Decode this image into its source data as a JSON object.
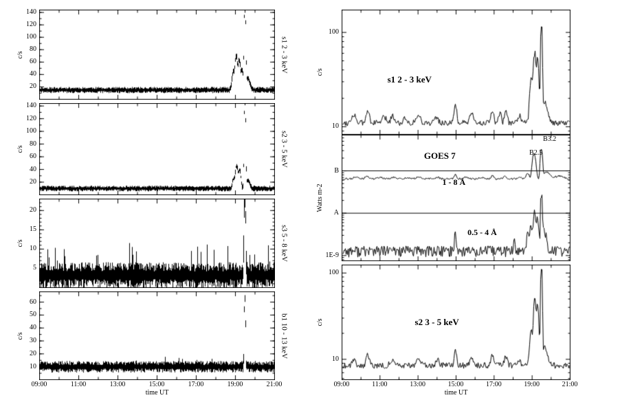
{
  "colors": {
    "trace": "#000000",
    "background": "#ffffff"
  },
  "chart_data": {
    "type": "line",
    "description": "Solar X-ray count-rate time profiles (detectors s1, s2, s3, b1) with GOES 7 X-ray flux comparison, 09:00-21:00 UT",
    "x_axis": {
      "label": "time UT",
      "start_hour": 9,
      "end_hour": 21,
      "ticks": [
        {
          "hour": 9,
          "label": "09:00"
        },
        {
          "hour": 11,
          "label": "11:00"
        },
        {
          "hour": 13,
          "label": "13:00"
        },
        {
          "hour": 15,
          "label": "15:00"
        },
        {
          "hour": 17,
          "label": "17:00"
        },
        {
          "hour": 19,
          "label": "19:00"
        },
        {
          "hour": 21,
          "label": "21:00"
        }
      ]
    },
    "figures": [
      {
        "id": "left-stack",
        "panels": [
          {
            "name": "s1-linear",
            "scale": "linear",
            "ylim": [
              0,
              144
            ],
            "yminor": 10,
            "ylabel": "c/s",
            "right_label": "s1  2 - 3 keV",
            "yticks": [
              {
                "v": 20,
                "label": "20"
              },
              {
                "v": 40,
                "label": "40"
              },
              {
                "v": 60,
                "label": "60"
              },
              {
                "v": 80,
                "label": "80"
              },
              {
                "v": 100,
                "label": "100"
              },
              {
                "v": 120,
                "label": "120"
              },
              {
                "v": 140,
                "label": "140"
              }
            ],
            "series": [
              {
                "mode": "band",
                "baseline": 15,
                "noise": 5,
                "seed": 11,
                "peaks": [
                  {
                    "t": 18.88,
                    "h": 28,
                    "w": 0.06
                  },
                  {
                    "t": 19.03,
                    "h": 52,
                    "w": 0.055
                  },
                  {
                    "t": 19.18,
                    "h": 46,
                    "w": 0.05
                  },
                  {
                    "t": 19.32,
                    "h": 30,
                    "w": 0.05
                  },
                  {
                    "t": 19.47,
                    "h": 122,
                    "w": 0.035
                  },
                  {
                    "t": 19.62,
                    "h": 18,
                    "w": 0.1
                  }
                ]
              }
            ]
          },
          {
            "name": "s2-linear",
            "scale": "linear",
            "ylim": [
              0,
              144
            ],
            "yminor": 10,
            "ylabel": "c/s",
            "right_label": "s2  3 - 5 keV",
            "yticks": [
              {
                "v": 20,
                "label": "20"
              },
              {
                "v": 40,
                "label": "40"
              },
              {
                "v": 60,
                "label": "60"
              },
              {
                "v": 80,
                "label": "80"
              },
              {
                "v": 100,
                "label": "100"
              },
              {
                "v": 120,
                "label": "120"
              },
              {
                "v": 140,
                "label": "140"
              }
            ],
            "series": [
              {
                "mode": "band",
                "baseline": 10,
                "noise": 4.5,
                "seed": 22,
                "peaks": [
                  {
                    "t": 18.9,
                    "h": 14,
                    "w": 0.06
                  },
                  {
                    "t": 19.05,
                    "h": 34,
                    "w": 0.055
                  },
                  {
                    "t": 19.2,
                    "h": 28,
                    "w": 0.05
                  },
                  {
                    "t": 19.47,
                    "h": 128,
                    "w": 0.03
                  },
                  {
                    "t": 19.6,
                    "h": 12,
                    "w": 0.1
                  }
                ]
              }
            ]
          },
          {
            "name": "s3-linear",
            "scale": "linear",
            "ylim": [
              0,
              23
            ],
            "yminor": 1,
            "ylabel": "c/s",
            "right_label": "s3  5 - 8 keV",
            "yticks": [
              {
                "v": 5,
                "label": "5"
              },
              {
                "v": 10,
                "label": "10"
              },
              {
                "v": 15,
                "label": "15"
              },
              {
                "v": 20,
                "label": "20"
              }
            ],
            "series": [
              {
                "mode": "band",
                "baseline": 3.2,
                "noise": 3.4,
                "seed": 33,
                "spike_prob": 0.08,
                "spike_amp": 6,
                "peaks": [
                  {
                    "t": 19.47,
                    "h": 19,
                    "w": 0.03
                  }
                ]
              }
            ]
          },
          {
            "name": "b1-linear",
            "scale": "linear",
            "ylim": [
              0,
              68
            ],
            "yminor": 5,
            "ylabel": "c/s",
            "right_label": "b1  10 - 13 keV",
            "yticks": [
              {
                "v": 10,
                "label": "10"
              },
              {
                "v": 20,
                "label": "20"
              },
              {
                "v": 30,
                "label": "30"
              },
              {
                "v": 40,
                "label": "40"
              },
              {
                "v": 50,
                "label": "50"
              },
              {
                "v": 60,
                "label": "60"
              }
            ],
            "series": [
              {
                "mode": "band",
                "baseline": 10,
                "noise": 4.5,
                "seed": 44,
                "spike_prob": 0.05,
                "spike_amp": 5,
                "peaks": [
                  {
                    "t": 19.47,
                    "h": 54,
                    "w": 0.022
                  }
                ]
              }
            ]
          }
        ]
      },
      {
        "id": "right-stack",
        "panels": [
          {
            "name": "s1-log",
            "scale": "log",
            "ylim": [
              8.3,
              173
            ],
            "ylabel": "c/s",
            "yticks": [
              {
                "v": 10,
                "label": "10"
              },
              {
                "v": 100,
                "label": "100"
              }
            ],
            "annotations": [
              {
                "text": "s1  2 - 3 keV",
                "fx": 0.2,
                "fy": 0.52,
                "size": 13,
                "bold": true
              }
            ],
            "series": [
              {
                "mode": "line",
                "baseline": 11,
                "noise_frac": 0.07,
                "seed": 55,
                "peaks": [
                  {
                    "t": 9.6,
                    "h": 2.5,
                    "w": 0.09
                  },
                  {
                    "t": 10.35,
                    "h": 3.5,
                    "w": 0.07
                  },
                  {
                    "t": 11.2,
                    "h": 1.5,
                    "w": 0.1
                  },
                  {
                    "t": 11.65,
                    "h": 2,
                    "w": 0.08
                  },
                  {
                    "t": 12.3,
                    "h": 1.2,
                    "w": 0.1
                  },
                  {
                    "t": 13,
                    "h": 2,
                    "w": 0.1
                  },
                  {
                    "t": 13.95,
                    "h": 1.5,
                    "w": 0.08
                  },
                  {
                    "t": 14.95,
                    "h": 6,
                    "w": 0.05
                  },
                  {
                    "t": 15.8,
                    "h": 2.5,
                    "w": 0.07
                  },
                  {
                    "t": 16.9,
                    "h": 4,
                    "w": 0.05
                  },
                  {
                    "t": 17.3,
                    "h": 2.5,
                    "w": 0.06
                  },
                  {
                    "t": 17.6,
                    "h": 3,
                    "w": 0.06
                  },
                  {
                    "t": 18.3,
                    "h": 2,
                    "w": 0.07
                  },
                  {
                    "t": 18.95,
                    "h": 22,
                    "w": 0.07
                  },
                  {
                    "t": 19.12,
                    "h": 48,
                    "w": 0.05
                  },
                  {
                    "t": 19.27,
                    "h": 42,
                    "w": 0.045
                  },
                  {
                    "t": 19.47,
                    "h": 108,
                    "w": 0.03
                  },
                  {
                    "t": 19.65,
                    "h": 7,
                    "w": 0.12
                  }
                ]
              }
            ]
          },
          {
            "name": "goes7",
            "scale": "log",
            "ylim": [
              7.5e-10,
              7e-07
            ],
            "ylabel": "Watts m-2",
            "yticks": [
              {
                "v": 1e-07,
                "label": "B"
              },
              {
                "v": 1e-08,
                "label": "A"
              },
              {
                "v": 1e-09,
                "label": "1E-9"
              }
            ],
            "hlines": [
              1e-08,
              1e-07
            ],
            "annotations": [
              {
                "text": "GOES 7",
                "fx": 0.36,
                "fy": 0.13,
                "size": 13,
                "bold": true
              },
              {
                "text": "1 - 8 Å",
                "fx": 0.44,
                "fy": 0.34,
                "size": 12,
                "bold": true
              },
              {
                "text": "0.5 - 4 Å",
                "fx": 0.55,
                "fy": 0.74,
                "size": 12,
                "bold": true
              },
              {
                "text": "B2.5",
                "fx": 0.82,
                "fy": 0.12,
                "size": 10,
                "bold": false
              },
              {
                "text": "B3.2",
                "fx": 0.88,
                "fy": 0.01,
                "size": 10,
                "bold": false
              }
            ],
            "series": [
              {
                "name": "1 - 8 Å",
                "mode": "line",
                "baseline": 6.5e-08,
                "noise_frac": 0.05,
                "seed": 66,
                "peaks": [
                  {
                    "t": 9.7,
                    "h": 8e-09,
                    "w": 0.08
                  },
                  {
                    "t": 10.3,
                    "h": 1.1e-08,
                    "w": 0.07
                  },
                  {
                    "t": 11,
                    "h": 6e-09,
                    "w": 0.09
                  },
                  {
                    "t": 11.7,
                    "h": 5e-09,
                    "w": 0.09
                  },
                  {
                    "t": 12.4,
                    "h": 4e-09,
                    "w": 0.1
                  },
                  {
                    "t": 13,
                    "h": 7e-09,
                    "w": 0.09
                  },
                  {
                    "t": 14,
                    "h": 5e-09,
                    "w": 0.09
                  },
                  {
                    "t": 14.95,
                    "h": 1.8e-08,
                    "w": 0.05
                  },
                  {
                    "t": 15.5,
                    "h": 6e-09,
                    "w": 0.08
                  },
                  {
                    "t": 16.3,
                    "h": 5e-09,
                    "w": 0.09
                  },
                  {
                    "t": 16.9,
                    "h": 1.2e-08,
                    "w": 0.05
                  },
                  {
                    "t": 17.55,
                    "h": 9e-09,
                    "w": 0.07
                  },
                  {
                    "t": 18.3,
                    "h": 7e-09,
                    "w": 0.07
                  },
                  {
                    "t": 18.75,
                    "h": 2e-08,
                    "w": 0.06
                  },
                  {
                    "t": 19.08,
                    "h": 1.8e-07,
                    "w": 0.07
                  },
                  {
                    "t": 19.47,
                    "h": 2.5e-07,
                    "w": 0.04
                  },
                  {
                    "t": 19.75,
                    "h": 3e-08,
                    "w": 0.15
                  },
                  {
                    "t": 20.4,
                    "h": 1e-08,
                    "w": 0.2
                  }
                ]
              },
              {
                "name": "0.5 - 4 Å",
                "mode": "line",
                "baseline": 1.3e-09,
                "noise_frac": 0.3,
                "seed": 77,
                "peaks": [
                  {
                    "t": 14.95,
                    "h": 2.2e-09,
                    "w": 0.03
                  },
                  {
                    "t": 18.05,
                    "h": 1.6e-09,
                    "w": 0.02
                  },
                  {
                    "t": 18.75,
                    "h": 2e-09,
                    "w": 0.04
                  },
                  {
                    "t": 18.95,
                    "h": 4e-09,
                    "w": 0.05
                  },
                  {
                    "t": 19.1,
                    "h": 8e-09,
                    "w": 0.05
                  },
                  {
                    "t": 19.27,
                    "h": 6e-09,
                    "w": 0.04
                  },
                  {
                    "t": 19.47,
                    "h": 2.8e-08,
                    "w": 0.025
                  },
                  {
                    "t": 19.62,
                    "h": 3e-09,
                    "w": 0.07
                  }
                ]
              }
            ]
          },
          {
            "name": "s2-log",
            "scale": "log",
            "ylim": [
              5.8,
              124
            ],
            "ylabel": "c/s",
            "yticks": [
              {
                "v": 10,
                "label": "10"
              },
              {
                "v": 100,
                "label": "100"
              }
            ],
            "annotations": [
              {
                "text": "s2  3 - 5 keV",
                "fx": 0.32,
                "fy": 0.46,
                "size": 13,
                "bold": true
              }
            ],
            "series": [
              {
                "mode": "line",
                "baseline": 8.5,
                "noise_frac": 0.08,
                "seed": 88,
                "peaks": [
                  {
                    "t": 9.6,
                    "h": 1.5,
                    "w": 0.08
                  },
                  {
                    "t": 10.35,
                    "h": 2.5,
                    "w": 0.07
                  },
                  {
                    "t": 11.6,
                    "h": 1.2,
                    "w": 0.08
                  },
                  {
                    "t": 13,
                    "h": 1.5,
                    "w": 0.09
                  },
                  {
                    "t": 14,
                    "h": 1.2,
                    "w": 0.08
                  },
                  {
                    "t": 14.95,
                    "h": 4.5,
                    "w": 0.05
                  },
                  {
                    "t": 15.8,
                    "h": 1.5,
                    "w": 0.07
                  },
                  {
                    "t": 16.9,
                    "h": 2.5,
                    "w": 0.05
                  },
                  {
                    "t": 17.6,
                    "h": 2.2,
                    "w": 0.06
                  },
                  {
                    "t": 18.3,
                    "h": 1.5,
                    "w": 0.07
                  },
                  {
                    "t": 18.95,
                    "h": 12,
                    "w": 0.07
                  },
                  {
                    "t": 19.12,
                    "h": 38,
                    "w": 0.05
                  },
                  {
                    "t": 19.27,
                    "h": 33,
                    "w": 0.045
                  },
                  {
                    "t": 19.47,
                    "h": 100,
                    "w": 0.028
                  },
                  {
                    "t": 19.65,
                    "h": 5,
                    "w": 0.12
                  }
                ]
              }
            ]
          }
        ]
      }
    ]
  }
}
